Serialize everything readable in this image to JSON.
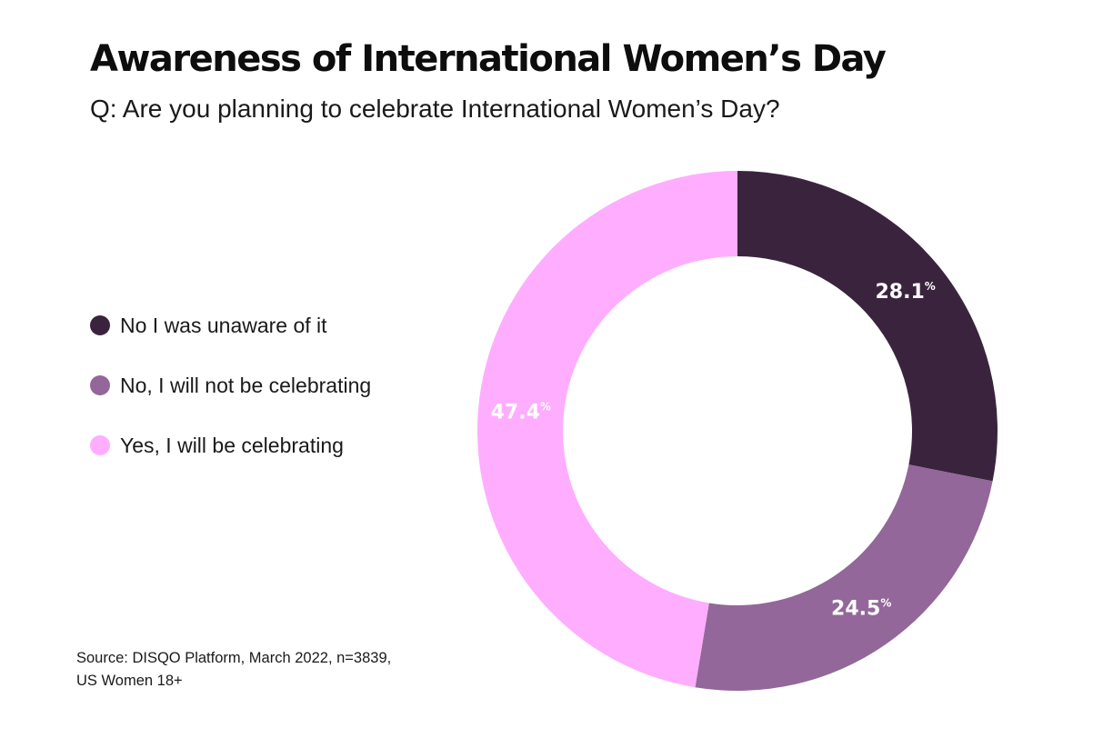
{
  "title": "Awareness of International Women’s Day",
  "subtitle": "Q: Are you planning to celebrate International Women’s Day?",
  "source": {
    "line1": "Source: DISQO Platform, March 2022, n=3839,",
    "line2": "US Women 18+"
  },
  "legend": [
    {
      "label": "No I was unaware of it",
      "color": "#3a243d"
    },
    {
      "label": "No, I will not be celebrating",
      "color": "#93679a"
    },
    {
      "label": "Yes, I will be celebrating",
      "color": "#ffadff"
    }
  ],
  "chart_data": {
    "type": "pie",
    "style": "donut",
    "title": "Awareness of International Women’s Day",
    "subtitle": "Q: Are you planning to celebrate International Women’s Day?",
    "categories": [
      "No I was unaware of it",
      "No, I will not be celebrating",
      "Yes, I will be celebrating"
    ],
    "values": [
      28.1,
      24.5,
      47.4
    ],
    "unit": "%",
    "colors": [
      "#3a243d",
      "#93679a",
      "#ffadff"
    ],
    "data_labels": [
      "28.1",
      "24.5",
      "47.4"
    ],
    "legend_position": "left"
  }
}
